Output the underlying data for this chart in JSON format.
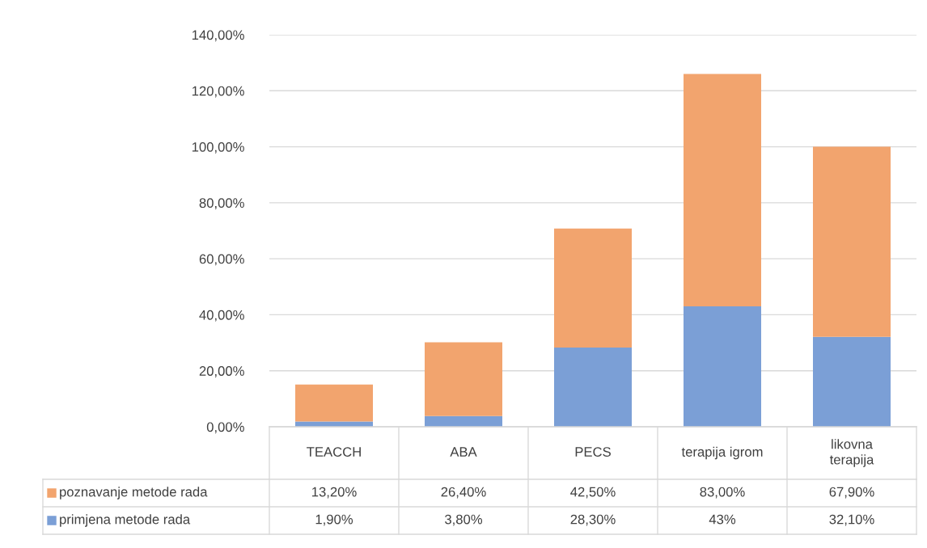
{
  "chart_data": {
    "type": "bar",
    "stacked": true,
    "categories": [
      "TEACCH",
      "ABA",
      "PECS",
      "terapija igrom",
      "likovna\nterapija"
    ],
    "series": [
      {
        "name": "primjena metode rada",
        "color": "#7b9fd6",
        "values": [
          1.9,
          3.8,
          28.3,
          43,
          32.1
        ],
        "value_labels": [
          "1,90%",
          "3,80%",
          "28,30%",
          "43%",
          "32,10%"
        ]
      },
      {
        "name": "poznavanje metode rada",
        "color": "#f2a46e",
        "values": [
          13.2,
          26.4,
          42.5,
          83.0,
          67.9
        ],
        "value_labels": [
          "13,20%",
          "26,40%",
          "42,50%",
          "83,00%",
          "67,90%"
        ]
      }
    ],
    "ylim": [
      0,
      140
    ],
    "yticks": [
      {
        "value": 0,
        "label": "0,00%"
      },
      {
        "value": 20,
        "label": "20,00%"
      },
      {
        "value": 40,
        "label": "40,00%"
      },
      {
        "value": 60,
        "label": "60,00%"
      },
      {
        "value": 80,
        "label": "80,00%"
      },
      {
        "value": 100,
        "label": "100,00%"
      },
      {
        "value": 120,
        "label": "120,00%"
      },
      {
        "value": 140,
        "label": "140,00%"
      }
    ],
    "grid": "y",
    "legend": "bottom"
  }
}
